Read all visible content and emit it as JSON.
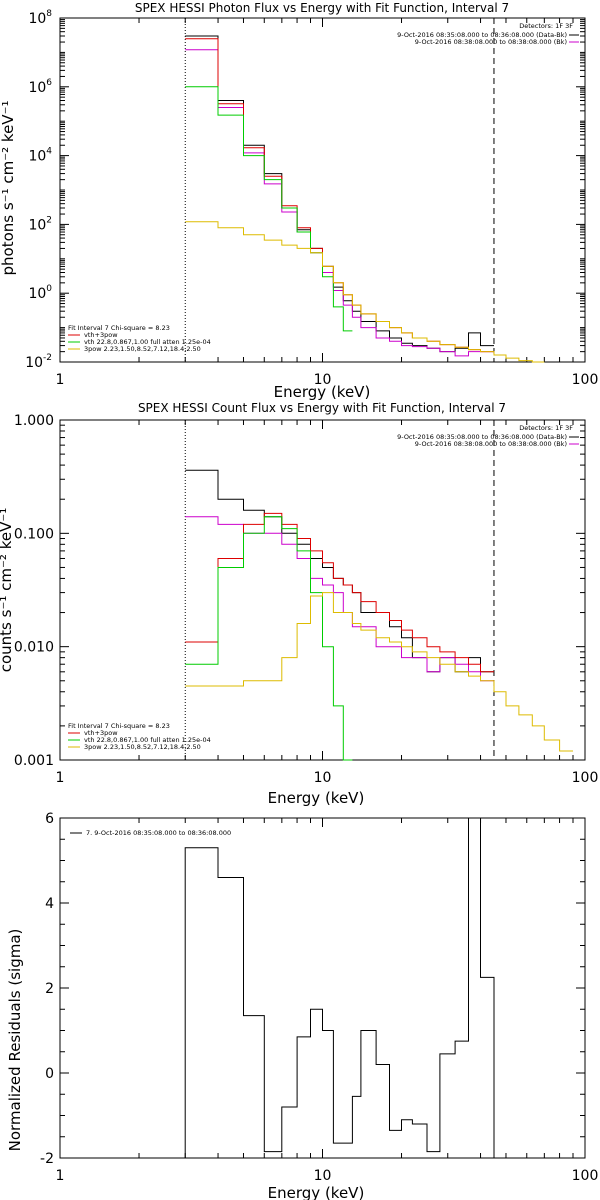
{
  "chart_data": [
    {
      "type": "line",
      "title": "SPEX HESSI Photon Flux vs Energy with Fit Function, Interval 7",
      "xlabel": "Energy (keV)",
      "ylabel": "photons s⁻¹ cm⁻² keV⁻¹",
      "xscale": "log",
      "yscale": "log",
      "xlim": [
        1,
        100
      ],
      "ylim": [
        0.01,
        100000000
      ],
      "xticks": [
        {
          "v": 1,
          "label": "1"
        },
        {
          "v": 10,
          "label": "10"
        },
        {
          "v": 100,
          "label": "100"
        }
      ],
      "yticks": [
        {
          "v": 0.01,
          "base": "10",
          "exp": "-2"
        },
        {
          "v": 1,
          "base": "10",
          "exp": "0"
        },
        {
          "v": 100,
          "base": "10",
          "exp": "2"
        },
        {
          "v": 10000,
          "base": "10",
          "exp": "4"
        },
        {
          "v": 1000000,
          "base": "10",
          "exp": "6"
        },
        {
          "v": 100000000,
          "base": "10",
          "exp": "8"
        }
      ],
      "grid": false,
      "vlines": [
        {
          "x": 3,
          "style": "dotted",
          "color": "#000000"
        },
        {
          "x": 45,
          "style": "dashed",
          "color": "#000000"
        }
      ],
      "legend_top": {
        "header": "Detectors: 1F 3F",
        "entries": [
          {
            "label": "9-Oct-2016 08:35:08.000 to 08:36:08.000 (Data-Bk)",
            "color": "#000000"
          },
          {
            "label": "9-Oct-2016 08:38:08.000 to 08:38:08.000 (Bk)",
            "color": "#cc00cc"
          }
        ]
      },
      "legend_bottom": {
        "header": "Fit Interval 7   Chi-square = 8.23",
        "entries": [
          {
            "label": "vth+3pow",
            "color": "#dd0000"
          },
          {
            "label": "vth 22.8,0.867,1.00  full atten 1.25e-04",
            "color": "#00cc00"
          },
          {
            "label": "3pow 2.23,1.50,8.52,7.12,18.4,2.50",
            "color": "#ddbb00"
          }
        ]
      },
      "edges": [
        3,
        4,
        5,
        6,
        7,
        8,
        9,
        10,
        11,
        12,
        13,
        14,
        16,
        18,
        20,
        22,
        25,
        28,
        32,
        36,
        40,
        45,
        50,
        56,
        63,
        70
      ],
      "series": [
        {
          "name": "Data-Bk",
          "color": "#000000",
          "values": [
            30000000,
            400000,
            20000,
            3000,
            300,
            70,
            20,
            6,
            1.5,
            0.6,
            0.3,
            0.15,
            0.08,
            0.05,
            0.035,
            0.03,
            0.025,
            0.02,
            0.025,
            0.07,
            0.03,
            null,
            null,
            null,
            null
          ]
        },
        {
          "name": "Bk",
          "color": "#cc00cc",
          "values": [
            12000000,
            250000,
            12000,
            1500,
            230,
            60,
            15,
            4,
            1.2,
            0.45,
            0.2,
            0.1,
            0.05,
            0.04,
            0.03,
            0.028,
            0.025,
            0.02,
            0.015,
            0.02,
            0.02,
            null,
            null,
            null,
            null
          ]
        },
        {
          "name": "vth+3pow",
          "color": "#dd0000",
          "values": [
            25000000,
            320000,
            17000,
            2500,
            350,
            80,
            20,
            6,
            2,
            0.9,
            0.45,
            0.25,
            0.15,
            0.1,
            0.07,
            0.05,
            0.04,
            0.032,
            0.027,
            0.023,
            0.02,
            null,
            null,
            null,
            null
          ]
        },
        {
          "name": "vth",
          "color": "#00cc00",
          "values": [
            1000000,
            150000,
            10000,
            2000,
            300,
            60,
            15,
            3,
            0.4,
            0.08,
            null,
            null,
            null,
            null,
            null,
            null,
            null,
            null,
            null,
            null,
            null,
            null,
            null,
            null,
            null
          ]
        },
        {
          "name": "3pow",
          "color": "#ddbb00",
          "values": [
            120,
            80,
            50,
            35,
            25,
            20,
            15,
            6,
            2,
            0.9,
            0.45,
            0.25,
            0.15,
            0.1,
            0.07,
            0.05,
            0.04,
            0.032,
            0.027,
            0.023,
            0.02,
            0.016,
            0.013,
            0.011,
            0.01
          ]
        }
      ]
    },
    {
      "type": "line",
      "title": "SPEX HESSI Count Flux vs Energy with Fit Function, Interval 7",
      "xlabel": "Energy (keV)",
      "ylabel": "counts s⁻¹ cm⁻² keV⁻¹",
      "xscale": "log",
      "yscale": "log",
      "xlim": [
        1,
        100
      ],
      "ylim": [
        0.001,
        1
      ],
      "xticks": [
        {
          "v": 1,
          "label": "1"
        },
        {
          "v": 10,
          "label": "10"
        },
        {
          "v": 100,
          "label": "100"
        }
      ],
      "yticks": [
        {
          "v": 0.001,
          "label": "0.001"
        },
        {
          "v": 0.01,
          "label": "0.010"
        },
        {
          "v": 0.1,
          "label": "0.100"
        },
        {
          "v": 1,
          "label": "1.000"
        }
      ],
      "grid": false,
      "vlines": [
        {
          "x": 3,
          "style": "dotted",
          "color": "#000000"
        },
        {
          "x": 45,
          "style": "dashed",
          "color": "#000000"
        }
      ],
      "legend_top": {
        "header": "Detectors: 1F 3F",
        "entries": [
          {
            "label": "9-Oct-2016 08:35:08.000 to 08:36:08.000 (Data-Bk)",
            "color": "#000000"
          },
          {
            "label": "9-Oct-2016 08:38:08.000 to 08:38:08.000 (Bk)",
            "color": "#cc00cc"
          }
        ]
      },
      "legend_bottom": {
        "header": "Fit Interval 7   Chi-square = 8.23",
        "entries": [
          {
            "label": "vth+3pow",
            "color": "#dd0000"
          },
          {
            "label": "vth 22.8,0.867,1.00  full atten 1.25e-04",
            "color": "#00cc00"
          },
          {
            "label": "3pow 2.23,1.50,8.52,7.12,18.4,2.50",
            "color": "#ddbb00"
          }
        ]
      },
      "edges": [
        3,
        4,
        5,
        6,
        7,
        8,
        9,
        10,
        11,
        12,
        13,
        14,
        16,
        18,
        20,
        22,
        25,
        28,
        32,
        36,
        40,
        45,
        50,
        56,
        63,
        70,
        80,
        90
      ],
      "series": [
        {
          "name": "Data-Bk",
          "color": "#000000",
          "values": [
            0.36,
            0.2,
            0.16,
            0.14,
            0.1,
            0.08,
            0.06,
            0.05,
            0.04,
            0.035,
            0.03,
            0.02,
            0.02,
            0.015,
            0.012,
            0.008,
            0.006,
            0.008,
            0.006,
            0.008,
            0.006,
            null,
            null,
            null,
            null,
            null,
            null
          ]
        },
        {
          "name": "Bk",
          "color": "#cc00cc",
          "values": [
            0.14,
            0.12,
            0.1,
            0.1,
            0.08,
            0.06,
            0.04,
            0.035,
            0.03,
            0.02,
            0.015,
            0.015,
            0.01,
            0.01,
            0.008,
            0.008,
            0.006,
            0.008,
            0.007,
            0.006,
            0.005,
            null,
            null,
            null,
            null,
            null,
            null
          ]
        },
        {
          "name": "vth+3pow",
          "color": "#dd0000",
          "values": [
            0.011,
            0.06,
            0.12,
            0.15,
            0.12,
            0.09,
            0.07,
            0.055,
            0.04,
            0.035,
            0.03,
            0.025,
            0.02,
            0.017,
            0.014,
            0.012,
            0.01,
            0.009,
            0.008,
            0.007,
            0.006,
            null,
            null,
            null,
            null,
            null,
            null
          ]
        },
        {
          "name": "vth",
          "color": "#00cc00",
          "values": [
            0.007,
            0.05,
            0.1,
            0.14,
            0.11,
            0.07,
            0.03,
            0.01,
            0.003,
            0.001,
            null,
            null,
            null,
            null,
            null,
            null,
            null,
            null,
            null,
            null,
            null,
            null,
            null,
            null,
            null,
            null,
            null
          ]
        },
        {
          "name": "3pow",
          "color": "#ddbb00",
          "values": [
            0.0045,
            0.0045,
            0.005,
            0.005,
            0.008,
            0.016,
            0.028,
            0.03,
            0.02,
            0.02,
            0.016,
            0.014,
            0.012,
            0.011,
            0.01,
            0.009,
            0.008,
            0.007,
            0.006,
            0.0055,
            0.005,
            0.004,
            0.003,
            0.0025,
            0.002,
            0.0015,
            0.0012
          ]
        }
      ]
    },
    {
      "type": "line",
      "title": "",
      "xlabel": "Energy (keV)",
      "ylabel": "Normalized Residuals (sigma)",
      "xscale": "log",
      "yscale": "linear",
      "xlim": [
        1,
        100
      ],
      "ylim": [
        -2,
        6
      ],
      "xticks": [
        {
          "v": 1,
          "label": "1"
        },
        {
          "v": 10,
          "label": "10"
        },
        {
          "v": 100,
          "label": "100"
        }
      ],
      "yticks": [
        {
          "v": -2,
          "label": "-2"
        },
        {
          "v": 0,
          "label": "0"
        },
        {
          "v": 2,
          "label": "2"
        },
        {
          "v": 4,
          "label": "4"
        },
        {
          "v": 6,
          "label": "6"
        }
      ],
      "grid": false,
      "legend": {
        "entries": [
          {
            "label": "7.  9-Oct-2016 08:35:08.000 to 08:36:08.000",
            "color": "#000000"
          }
        ]
      },
      "edges": [
        3,
        4,
        5,
        6,
        7,
        8,
        9,
        10,
        11,
        12,
        13,
        14,
        16,
        18,
        20,
        22,
        25,
        28,
        32,
        36,
        40,
        45
      ],
      "series": [
        {
          "name": "7",
          "color": "#000000",
          "values": [
            5.3,
            4.6,
            1.35,
            -1.85,
            -0.8,
            0.85,
            1.5,
            1.0,
            -1.65,
            -1.65,
            -0.55,
            1.0,
            0.2,
            -1.35,
            -1.1,
            -1.2,
            -1.85,
            0.45,
            0.75,
            6.0,
            2.25
          ]
        }
      ]
    }
  ]
}
